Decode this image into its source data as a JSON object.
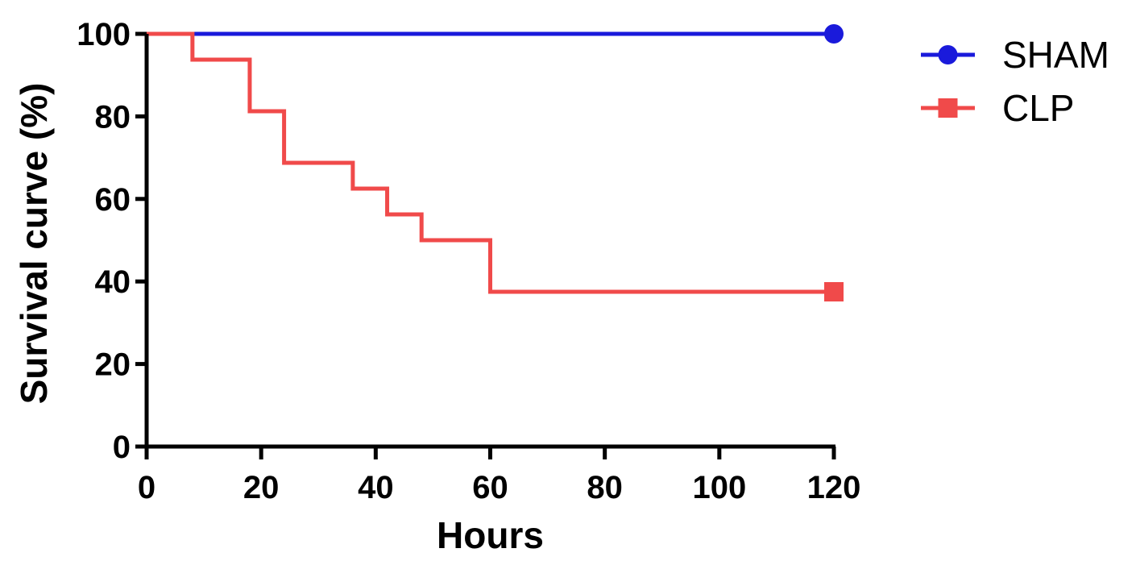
{
  "chart_data": {
    "type": "line",
    "step": true,
    "title": "",
    "xlabel": "Hours",
    "ylabel": "Survival curve (%)",
    "xlim": [
      0,
      120
    ],
    "ylim": [
      0,
      100
    ],
    "xticks": [
      0,
      20,
      40,
      60,
      80,
      100,
      120
    ],
    "yticks": [
      0,
      20,
      40,
      60,
      80,
      100
    ],
    "grid": false,
    "legend_position": "top-right",
    "series": [
      {
        "name": "SHAM",
        "color": "#1a1adb",
        "marker": "circle",
        "x": [
          0,
          120
        ],
        "y": [
          100,
          100
        ]
      },
      {
        "name": "CLP",
        "color": "#f04a4a",
        "marker": "square",
        "x": [
          0,
          8,
          18,
          24,
          36,
          42,
          48,
          60,
          120
        ],
        "y": [
          100,
          93.75,
          81.25,
          68.75,
          62.5,
          56.25,
          50,
          37.5,
          37.5
        ]
      }
    ]
  }
}
